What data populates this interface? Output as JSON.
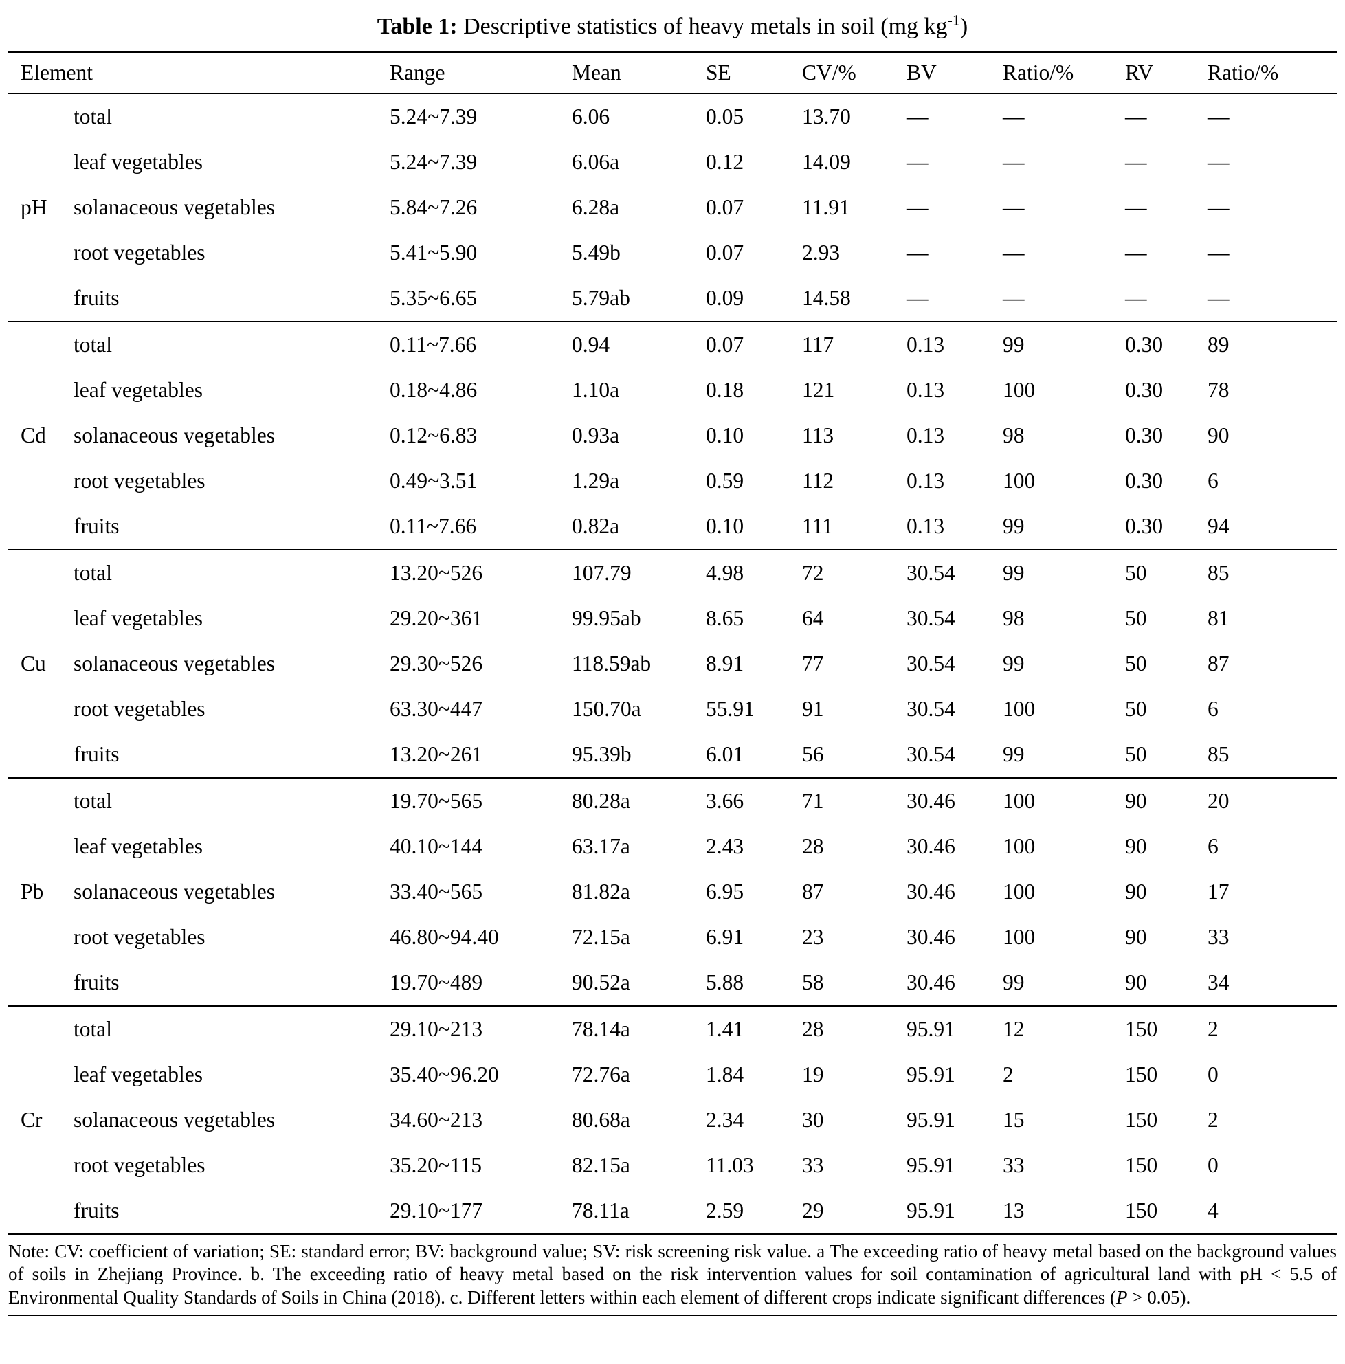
{
  "title": {
    "label": "Table 1:",
    "text": " Descriptive statistics of heavy metals in soil (mg kg",
    "superscript": "-1",
    "suffix": ")"
  },
  "columns": [
    "Element",
    "Range",
    "Mean",
    "SE",
    "CV/%",
    "BV",
    "Ratio/%",
    "RV",
    "Ratio/%"
  ],
  "groups": [
    {
      "element": "pH",
      "rows": [
        {
          "category": "total",
          "range": "5.24~7.39",
          "mean": "6.06",
          "se": "0.05",
          "cv": "13.70",
          "bv": "—",
          "ratio_bv": "—",
          "rv": "—",
          "ratio_rv": "—"
        },
        {
          "category": "leaf vegetables",
          "range": "5.24~7.39",
          "mean": "6.06a",
          "se": "0.12",
          "cv": "14.09",
          "bv": "—",
          "ratio_bv": "—",
          "rv": "—",
          "ratio_rv": "—"
        },
        {
          "category": "solanaceous vegetables",
          "range": "5.84~7.26",
          "mean": "6.28a",
          "se": "0.07",
          "cv": "11.91",
          "bv": "—",
          "ratio_bv": "—",
          "rv": "—",
          "ratio_rv": "—"
        },
        {
          "category": "root vegetables",
          "range": "5.41~5.90",
          "mean": "5.49b",
          "se": "0.07",
          "cv": "2.93",
          "bv": "—",
          "ratio_bv": "—",
          "rv": "—",
          "ratio_rv": "—"
        },
        {
          "category": "fruits",
          "range": "5.35~6.65",
          "mean": "5.79ab",
          "se": "0.09",
          "cv": "14.58",
          "bv": "—",
          "ratio_bv": "—",
          "rv": "—",
          "ratio_rv": "—"
        }
      ]
    },
    {
      "element": "Cd",
      "rows": [
        {
          "category": "total",
          "range": "0.11~7.66",
          "mean": "0.94",
          "se": "0.07",
          "cv": "117",
          "bv": "0.13",
          "ratio_bv": "99",
          "rv": "0.30",
          "ratio_rv": "89"
        },
        {
          "category": "leaf vegetables",
          "range": "0.18~4.86",
          "mean": "1.10a",
          "se": "0.18",
          "cv": "121",
          "bv": "0.13",
          "ratio_bv": "100",
          "rv": "0.30",
          "ratio_rv": "78"
        },
        {
          "category": "solanaceous vegetables",
          "range": "0.12~6.83",
          "mean": "0.93a",
          "se": "0.10",
          "cv": "113",
          "bv": "0.13",
          "ratio_bv": "98",
          "rv": "0.30",
          "ratio_rv": "90"
        },
        {
          "category": "root vegetables",
          "range": "0.49~3.51",
          "mean": "1.29a",
          "se": "0.59",
          "cv": "112",
          "bv": "0.13",
          "ratio_bv": "100",
          "rv": "0.30",
          "ratio_rv": "6"
        },
        {
          "category": "fruits",
          "range": "0.11~7.66",
          "mean": "0.82a",
          "se": "0.10",
          "cv": "111",
          "bv": "0.13",
          "ratio_bv": "99",
          "rv": "0.30",
          "ratio_rv": "94"
        }
      ]
    },
    {
      "element": "Cu",
      "rows": [
        {
          "category": "total",
          "range": "13.20~526",
          "mean": "107.79",
          "se": "4.98",
          "cv": "72",
          "bv": "30.54",
          "ratio_bv": "99",
          "rv": "50",
          "ratio_rv": "85"
        },
        {
          "category": "leaf vegetables",
          "range": "29.20~361",
          "mean": "99.95ab",
          "se": "8.65",
          "cv": "64",
          "bv": "30.54",
          "ratio_bv": "98",
          "rv": "50",
          "ratio_rv": "81"
        },
        {
          "category": "solanaceous vegetables",
          "range": "29.30~526",
          "mean": "118.59ab",
          "se": "8.91",
          "cv": "77",
          "bv": "30.54",
          "ratio_bv": "99",
          "rv": "50",
          "ratio_rv": "87"
        },
        {
          "category": "root vegetables",
          "range": "63.30~447",
          "mean": "150.70a",
          "se": "55.91",
          "cv": "91",
          "bv": "30.54",
          "ratio_bv": "100",
          "rv": "50",
          "ratio_rv": "6"
        },
        {
          "category": "fruits",
          "range": "13.20~261",
          "mean": "95.39b",
          "se": "6.01",
          "cv": "56",
          "bv": "30.54",
          "ratio_bv": "99",
          "rv": "50",
          "ratio_rv": "85"
        }
      ]
    },
    {
      "element": "Pb",
      "rows": [
        {
          "category": "total",
          "range": "19.70~565",
          "mean": "80.28a",
          "se": "3.66",
          "cv": "71",
          "bv": "30.46",
          "ratio_bv": "100",
          "rv": "90",
          "ratio_rv": "20"
        },
        {
          "category": "leaf vegetables",
          "range": "40.10~144",
          "mean": "63.17a",
          "se": "2.43",
          "cv": "28",
          "bv": "30.46",
          "ratio_bv": "100",
          "rv": "90",
          "ratio_rv": "6"
        },
        {
          "category": "solanaceous vegetables",
          "range": "33.40~565",
          "mean": "81.82a",
          "se": "6.95",
          "cv": "87",
          "bv": "30.46",
          "ratio_bv": "100",
          "rv": "90",
          "ratio_rv": "17"
        },
        {
          "category": "root vegetables",
          "range": "46.80~94.40",
          "mean": "72.15a",
          "se": "6.91",
          "cv": "23",
          "bv": "30.46",
          "ratio_bv": "100",
          "rv": "90",
          "ratio_rv": "33"
        },
        {
          "category": "fruits",
          "range": "19.70~489",
          "mean": "90.52a",
          "se": "5.88",
          "cv": "58",
          "bv": "30.46",
          "ratio_bv": "99",
          "rv": "90",
          "ratio_rv": "34"
        }
      ]
    },
    {
      "element": "Cr",
      "rows": [
        {
          "category": "total",
          "range": "29.10~213",
          "mean": "78.14a",
          "se": "1.41",
          "cv": "28",
          "bv": "95.91",
          "ratio_bv": "12",
          "rv": "150",
          "ratio_rv": "2"
        },
        {
          "category": "leaf vegetables",
          "range": "35.40~96.20",
          "mean": "72.76a",
          "se": "1.84",
          "cv": "19",
          "bv": "95.91",
          "ratio_bv": "2",
          "rv": "150",
          "ratio_rv": "0"
        },
        {
          "category": "solanaceous vegetables",
          "range": "34.60~213",
          "mean": "80.68a",
          "se": "2.34",
          "cv": "30",
          "bv": "95.91",
          "ratio_bv": "15",
          "rv": "150",
          "ratio_rv": "2"
        },
        {
          "category": "root vegetables",
          "range": "35.20~115",
          "mean": "82.15a",
          "se": "11.03",
          "cv": "33",
          "bv": "95.91",
          "ratio_bv": "33",
          "rv": "150",
          "ratio_rv": "0"
        },
        {
          "category": "fruits",
          "range": "29.10~177",
          "mean": "78.11a",
          "se": "2.59",
          "cv": "29",
          "bv": "95.91",
          "ratio_bv": "13",
          "rv": "150",
          "ratio_rv": "4"
        }
      ]
    }
  ],
  "note": {
    "before_italic": "Note: CV: coefficient of variation; SE: standard error; BV: background value; SV: risk screening risk value. a The exceeding ratio of heavy metal based on the background values of soils in Zhejiang Province. b. The exceeding ratio of heavy metal based on the risk intervention values for soil contamination of agricultural land with pH < 5.5 of Environmental Quality Standards of Soils in China (2018). c. Different letters within each element of different crops indicate significant differences (",
    "italic": "P",
    "after_italic": " > 0.05)."
  }
}
